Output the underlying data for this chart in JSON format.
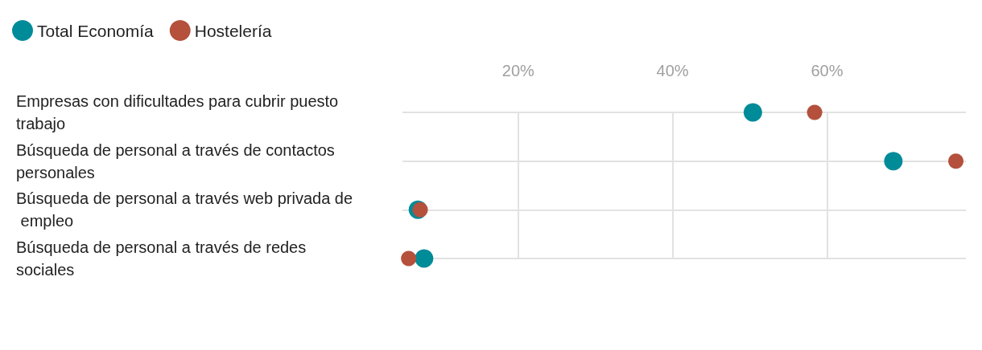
{
  "chart_data": {
    "type": "scatter",
    "orientation": "horizontal",
    "categories": [
      "Empresas con dificultades para cubrir puesto trabajo",
      "Búsqueda de personal a través de contactos personales",
      "Búsqueda de personal a través web privada de empleo",
      "Búsqueda de personal a través de redes sociales"
    ],
    "series": [
      {
        "name": "Total Economía",
        "color": "#008b99",
        "values": [
          50.4,
          68.6,
          7.0,
          7.8
        ]
      },
      {
        "name": "Hostelería",
        "color": "#b4503c",
        "values": [
          58.4,
          76.7,
          7.3,
          5.8
        ]
      }
    ],
    "xlim": [
      5,
      78
    ],
    "xticks": [
      {
        "value": 20,
        "label": "20%"
      },
      {
        "value": 40,
        "label": "40%"
      },
      {
        "value": 60,
        "label": "60%"
      }
    ],
    "grid": true,
    "legend": "top left",
    "marker": "circle"
  }
}
